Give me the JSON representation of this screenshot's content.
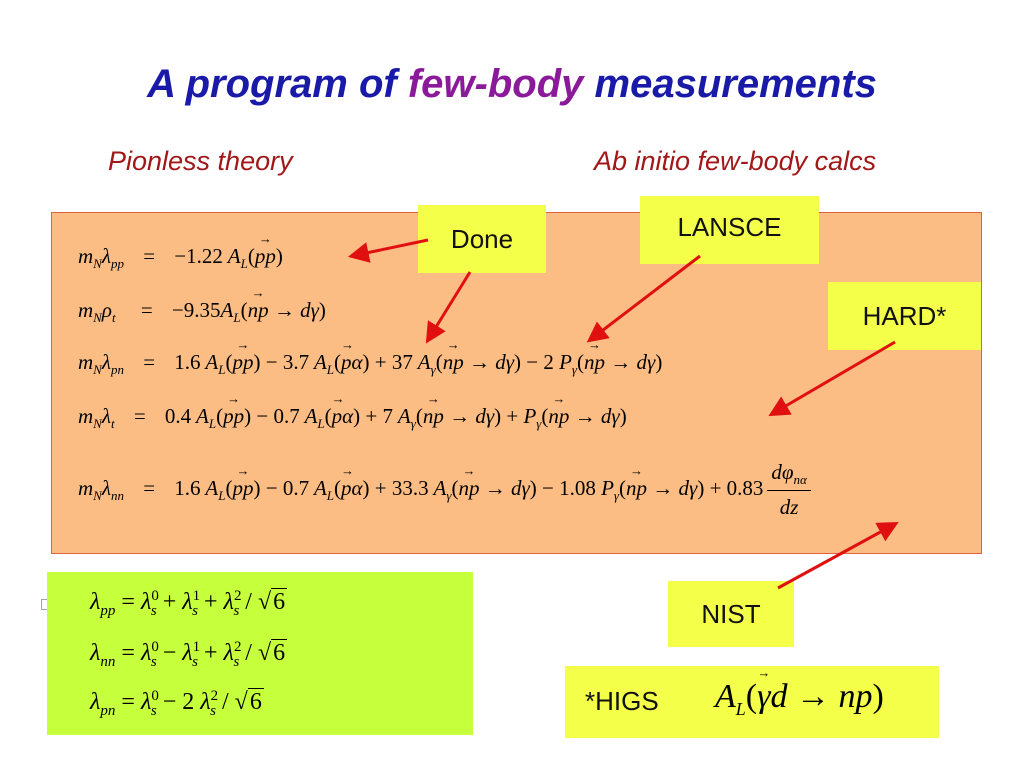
{
  "slide": {
    "title_part1": "A program of ",
    "title_highlight": "few-body",
    "title_part2": " measurements",
    "subtitle_left": "Pionless theory",
    "subtitle_right": "Ab initio few-body calcs"
  },
  "labels": {
    "done": "Done",
    "lansce": "LANSCE",
    "hard": "HARD*",
    "nist": "NIST",
    "higs": "*HIGS"
  },
  "colors": {
    "title_blue": "#1a1aa8",
    "title_highlight": "#8a1a9a",
    "subtitle_red": "#a01818",
    "main_box": "#fcbd85",
    "label_yellow": "#f4ff4a",
    "green_box": "#c6ff3c",
    "arrow_red": "#e01010"
  },
  "equations": {
    "eq1": {
      "coef": "−1.22",
      "rel": "=",
      "lhs_sub": "pp"
    },
    "eq2": {
      "coef": "−9.35",
      "rel": "=",
      "lhs_sub": "t"
    },
    "eq3": {
      "c1": "1.6",
      "c2": "3.7",
      "c3": "37",
      "c4": "2"
    },
    "eq4": {
      "c1": "0.4",
      "c2": "0.7",
      "c3": "7"
    },
    "eq5": {
      "c1": "1.6",
      "c2": "0.7",
      "c3": "33.3",
      "c4": "1.08",
      "c5": "0.83"
    }
  },
  "green_equations": {
    "g1": {
      "lhs": "pp",
      "sign1": "+",
      "sign2": "+"
    },
    "g2": {
      "lhs": "nn",
      "sign1": "−",
      "sign2": "+"
    },
    "g3": {
      "lhs": "pn",
      "sign1": "−",
      "coef": "2"
    },
    "root": "6"
  },
  "icons": [
    "bullet-glyph-icon",
    "arrow-icon"
  ]
}
